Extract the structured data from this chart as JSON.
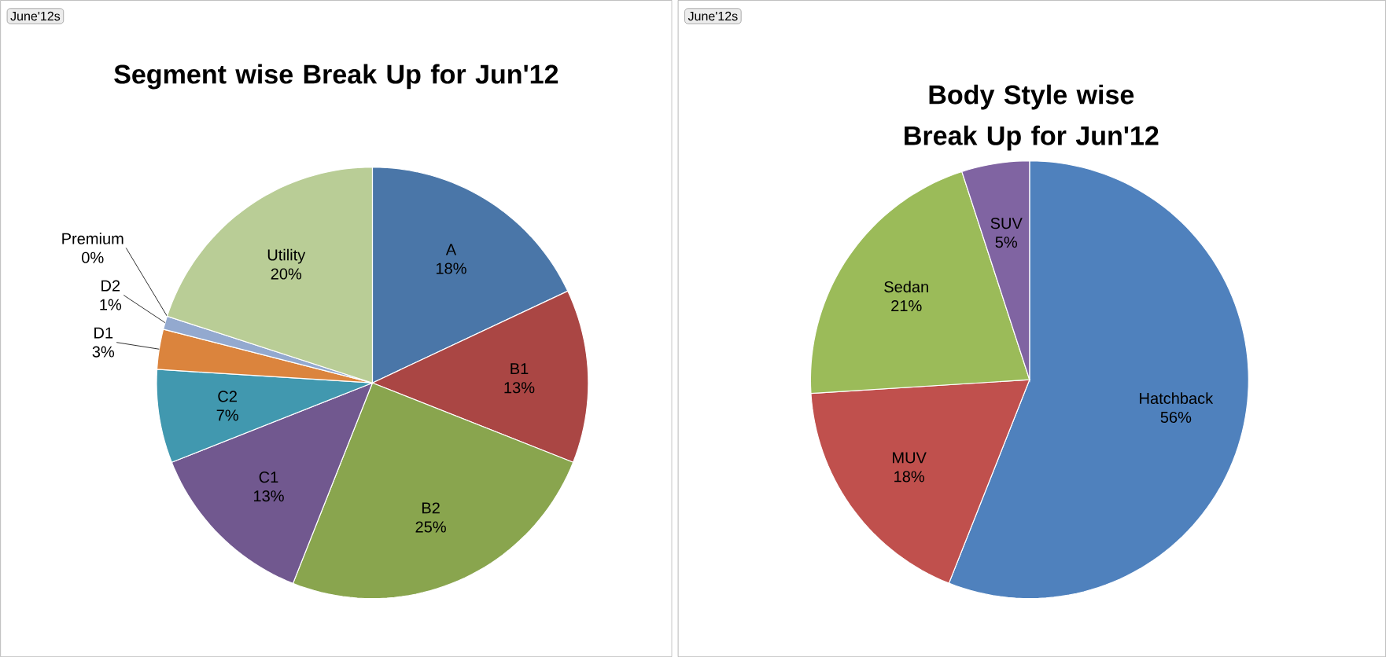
{
  "chart_data": [
    {
      "type": "pie",
      "title": "Segment wise Break Up for Jun'12",
      "annotations": [
        "June'12s"
      ],
      "categories": [
        "A",
        "B1",
        "B2",
        "C1",
        "C2",
        "D1",
        "D2",
        "Premium",
        "Utility"
      ],
      "values": [
        18,
        13,
        25,
        13,
        7,
        3,
        1,
        0,
        20
      ],
      "value_labels": [
        "18%",
        "13%",
        "25%",
        "13%",
        "7%",
        "3%",
        "1%",
        "0%",
        "20%"
      ],
      "colors": [
        "#4a76a8",
        "#aa4644",
        "#89a54e",
        "#71588f",
        "#4198af",
        "#db843d",
        "#93a9cf",
        "#d19392",
        "#b9cd96"
      ]
    },
    {
      "type": "pie",
      "title": "Body Style wise Break Up for Jun'12",
      "annotations": [
        "June'12s"
      ],
      "categories": [
        "Hatchback",
        "MUV",
        "Sedan",
        "SUV"
      ],
      "values": [
        56,
        18,
        21,
        5
      ],
      "value_labels": [
        "56%",
        "18%",
        "21%",
        "5%"
      ],
      "colors": [
        "#4f81bd",
        "#c0504d",
        "#9bbb59",
        "#8064a2"
      ]
    }
  ]
}
